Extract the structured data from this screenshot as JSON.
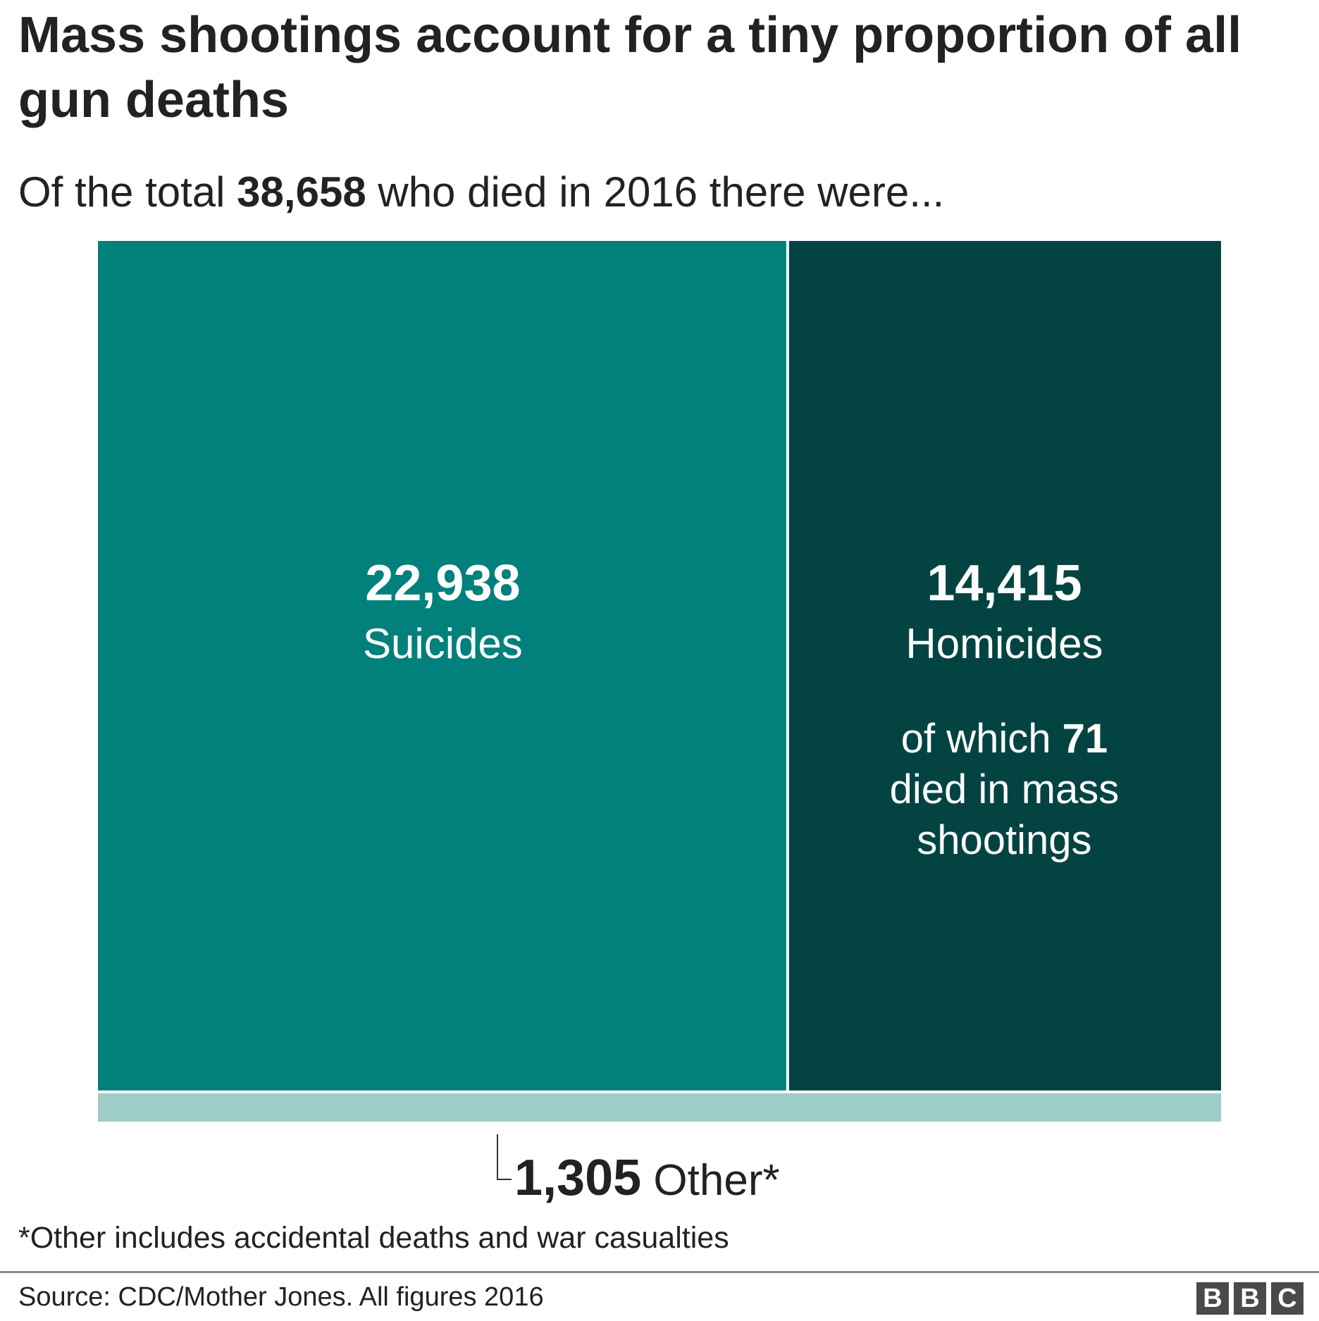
{
  "title": "Mass shootings account for a tiny proportion of all gun deaths",
  "subtitle": {
    "prefix": "Of the total ",
    "total": "38,658",
    "suffix": " who died in 2016 there were..."
  },
  "chart_data": {
    "type": "treemap",
    "total": 38658,
    "categories": [
      "Suicides",
      "Homicides",
      "Other*"
    ],
    "values": [
      22938,
      14415,
      1305
    ],
    "value_labels": [
      "22,938",
      "14,415",
      "1,305"
    ],
    "colors": [
      "#02807b",
      "#034442",
      "#9fcdc8"
    ],
    "subset": {
      "parent": "Homicides",
      "value": 71,
      "text_before": "of which ",
      "value_label": "71",
      "text_lines": [
        "died in mass",
        "shootings"
      ]
    }
  },
  "footnote": "*Other includes accidental deaths and war casualties",
  "source": "Source: CDC/Mother Jones. All figures 2016",
  "logo": [
    "B",
    "B",
    "C"
  ]
}
